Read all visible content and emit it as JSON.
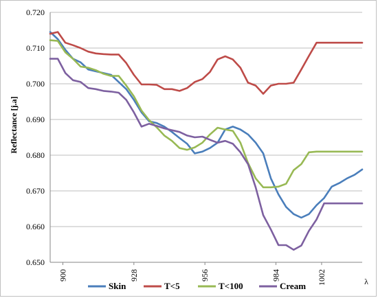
{
  "chart_data": {
    "type": "line",
    "title": "",
    "xlabel": "λ",
    "ylabel": "Reflectance [j.a]",
    "ylim": [
      0.65,
      0.72
    ],
    "yticks": [
      "0.720",
      "0.710",
      "0.700",
      "0.690",
      "0.680",
      "0.670",
      "0.660",
      "0.650"
    ],
    "xticks": [
      "900",
      "928",
      "956",
      "984",
      "1002"
    ],
    "grid": "horizontal",
    "legend_position": "bottom",
    "x": [
      895,
      898,
      901,
      904,
      907,
      910,
      913,
      916,
      919,
      922,
      925,
      928,
      931,
      934,
      937,
      940,
      943,
      946,
      949,
      952,
      955,
      958,
      961,
      964,
      967,
      970,
      973,
      976,
      979,
      982,
      985,
      988,
      991,
      994,
      997,
      1000,
      1003,
      1006,
      1009,
      1012,
      1015,
      1018
    ],
    "series": [
      {
        "name": "Skin",
        "color": "#4a7ebb",
        "values": [
          0.7145,
          0.7125,
          0.7095,
          0.707,
          0.706,
          0.704,
          0.7035,
          0.703,
          0.7025,
          0.7005,
          0.6985,
          0.6955,
          0.692,
          0.6895,
          0.689,
          0.688,
          0.6865,
          0.6848,
          0.6832,
          0.6805,
          0.681,
          0.682,
          0.6835,
          0.6872,
          0.688,
          0.6872,
          0.6858,
          0.6835,
          0.6805,
          0.6735,
          0.669,
          0.6655,
          0.6635,
          0.6625,
          0.6635,
          0.666,
          0.668,
          0.6712,
          0.6722,
          0.6735,
          0.6745,
          0.676
        ]
      },
      {
        "name": "T<5",
        "color": "#be4b48",
        "values": [
          0.714,
          0.7145,
          0.7115,
          0.7108,
          0.71,
          0.709,
          0.7085,
          0.7083,
          0.7082,
          0.7082,
          0.7058,
          0.7025,
          0.6998,
          0.6998,
          0.6997,
          0.6985,
          0.6985,
          0.698,
          0.6988,
          0.7005,
          0.7013,
          0.7033,
          0.7068,
          0.7077,
          0.7068,
          0.7045,
          0.7003,
          0.6995,
          0.6972,
          0.6995,
          0.7,
          0.7,
          0.7003,
          0.704,
          0.7078,
          0.7115,
          0.7115,
          0.7115,
          0.7115,
          0.7115,
          0.7115,
          0.7115
        ]
      },
      {
        "name": "T<100",
        "color": "#98b954",
        "values": [
          0.7122,
          0.712,
          0.7088,
          0.707,
          0.7048,
          0.7045,
          0.7038,
          0.7028,
          0.7022,
          0.7022,
          0.6995,
          0.6965,
          0.6925,
          0.6898,
          0.6878,
          0.6855,
          0.684,
          0.682,
          0.6815,
          0.6822,
          0.6835,
          0.6858,
          0.6877,
          0.6872,
          0.6868,
          0.6835,
          0.6778,
          0.6735,
          0.671,
          0.671,
          0.6712,
          0.672,
          0.6758,
          0.6775,
          0.6808,
          0.681,
          0.681,
          0.681,
          0.681,
          0.681,
          0.681,
          0.681
        ]
      },
      {
        "name": "Cream",
        "color": "#7d60a0",
        "values": [
          0.707,
          0.707,
          0.703,
          0.701,
          0.7005,
          0.6988,
          0.6985,
          0.698,
          0.6978,
          0.6975,
          0.6955,
          0.692,
          0.688,
          0.6888,
          0.6882,
          0.6875,
          0.687,
          0.6865,
          0.6855,
          0.685,
          0.6852,
          0.6843,
          0.6835,
          0.684,
          0.6832,
          0.6808,
          0.6775,
          0.671,
          0.6632,
          0.6592,
          0.6548,
          0.6548,
          0.6535,
          0.6547,
          0.6588,
          0.662,
          0.6665,
          0.6665,
          0.6665,
          0.6665,
          0.6665,
          0.6665
        ]
      }
    ]
  }
}
